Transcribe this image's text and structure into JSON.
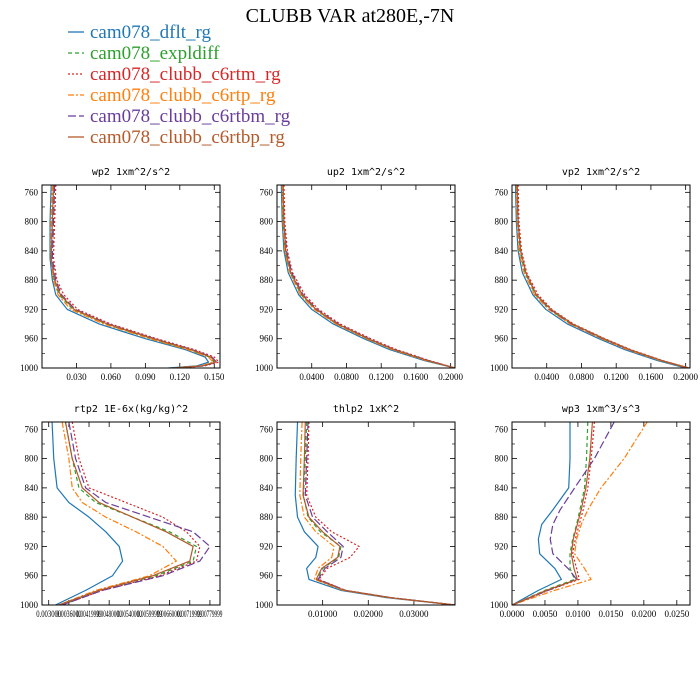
{
  "figure": {
    "title": "CLUBB VAR at280E,-7N"
  },
  "legend": [
    {
      "name": "cam078_dflt_rg",
      "color": "#1f77b4",
      "dash": ""
    },
    {
      "name": "cam078_expldiff",
      "color": "#2ca02c",
      "dash": "4 3"
    },
    {
      "name": "cam078_clubb_c6rtm_rg",
      "color": "#d62728",
      "dash": "2 2"
    },
    {
      "name": "cam078_clubb_c6rtp_rg",
      "color": "#ff7f0e",
      "dash": "6 2 2 2"
    },
    {
      "name": "cam078_clubb_c6rtbm_rg",
      "color": "#6a3d9a",
      "dash": "8 3"
    },
    {
      "name": "cam078_clubb_c6rtbp_rg",
      "color": "#b35a2a",
      "dash": ""
    }
  ],
  "chart_data": [
    {
      "type": "line",
      "title": "wp2   1xm^2/s^2",
      "xlim": [
        0.0,
        0.155
      ],
      "ylim": [
        1000,
        750
      ],
      "invert_y": true,
      "xticks": [
        0.03,
        0.06,
        0.09,
        0.12,
        0.15
      ],
      "xtick_labels": [
        "0.030",
        "0.060",
        "0.090",
        "0.120",
        "0.150"
      ],
      "yticks": [
        760,
        800,
        840,
        880,
        920,
        960,
        1000
      ],
      "y": [
        750,
        800,
        850,
        880,
        900,
        920,
        940,
        960,
        975,
        985,
        992,
        997,
        1000
      ],
      "series": [
        {
          "name": "cam078_dflt_rg",
          "values": [
            0.008,
            0.007,
            0.007,
            0.009,
            0.012,
            0.022,
            0.05,
            0.09,
            0.125,
            0.142,
            0.145,
            0.135,
            0.11
          ]
        },
        {
          "name": "cam078_expldiff",
          "values": [
            0.01,
            0.009,
            0.008,
            0.01,
            0.015,
            0.027,
            0.056,
            0.095,
            0.128,
            0.146,
            0.15,
            0.14,
            0.115
          ]
        },
        {
          "name": "cam078_clubb_c6rtm_rg",
          "values": [
            0.012,
            0.011,
            0.01,
            0.013,
            0.019,
            0.031,
            0.06,
            0.1,
            0.133,
            0.15,
            0.154,
            0.142,
            0.118
          ]
        },
        {
          "name": "cam078_clubb_c6rtp_rg",
          "values": [
            0.009,
            0.008,
            0.008,
            0.01,
            0.014,
            0.025,
            0.054,
            0.094,
            0.127,
            0.145,
            0.149,
            0.139,
            0.113
          ]
        },
        {
          "name": "cam078_clubb_c6rtbm_rg",
          "values": [
            0.011,
            0.01,
            0.009,
            0.012,
            0.017,
            0.029,
            0.058,
            0.098,
            0.131,
            0.148,
            0.152,
            0.141,
            0.116
          ]
        },
        {
          "name": "cam078_clubb_c6rtbp_rg",
          "values": [
            0.01,
            0.009,
            0.008,
            0.011,
            0.016,
            0.028,
            0.057,
            0.097,
            0.13,
            0.147,
            0.151,
            0.14,
            0.116
          ]
        }
      ]
    },
    {
      "type": "line",
      "title": "up2   1xm^2/s^2",
      "xlim": [
        0.0,
        0.205
      ],
      "ylim": [
        1000,
        750
      ],
      "invert_y": true,
      "xticks": [
        0.04,
        0.08,
        0.12,
        0.16,
        0.2
      ],
      "xtick_labels": [
        "0.0400",
        "0.0800",
        "0.1200",
        "0.1600",
        "0.2000"
      ],
      "yticks": [
        760,
        800,
        840,
        880,
        920,
        960,
        1000
      ],
      "y": [
        750,
        800,
        840,
        870,
        900,
        920,
        940,
        960,
        975,
        990,
        1000
      ],
      "series": [
        {
          "name": "cam078_dflt_rg",
          "values": [
            0.005,
            0.006,
            0.008,
            0.013,
            0.025,
            0.04,
            0.065,
            0.1,
            0.13,
            0.17,
            0.205
          ]
        },
        {
          "name": "cam078_expldiff",
          "values": [
            0.006,
            0.007,
            0.009,
            0.015,
            0.028,
            0.044,
            0.069,
            0.104,
            0.134,
            0.173,
            0.205
          ]
        },
        {
          "name": "cam078_clubb_c6rtm_rg",
          "values": [
            0.008,
            0.009,
            0.012,
            0.018,
            0.032,
            0.048,
            0.073,
            0.108,
            0.138,
            0.176,
            0.205
          ]
        },
        {
          "name": "cam078_clubb_c6rtp_rg",
          "values": [
            0.006,
            0.007,
            0.009,
            0.015,
            0.027,
            0.043,
            0.068,
            0.103,
            0.133,
            0.172,
            0.205
          ]
        },
        {
          "name": "cam078_clubb_c6rtbm_rg",
          "values": [
            0.007,
            0.008,
            0.011,
            0.017,
            0.03,
            0.046,
            0.071,
            0.106,
            0.136,
            0.175,
            0.205
          ]
        },
        {
          "name": "cam078_clubb_c6rtbp_rg",
          "values": [
            0.007,
            0.008,
            0.01,
            0.016,
            0.029,
            0.045,
            0.07,
            0.105,
            0.135,
            0.174,
            0.205
          ]
        }
      ]
    },
    {
      "type": "line",
      "title": "vp2   1xm^2/s^2",
      "xlim": [
        0.0,
        0.205
      ],
      "ylim": [
        1000,
        750
      ],
      "invert_y": true,
      "xticks": [
        0.04,
        0.08,
        0.12,
        0.16,
        0.2
      ],
      "xtick_labels": [
        "0.0400",
        "0.0800",
        "0.1200",
        "0.1600",
        "0.2000"
      ],
      "yticks": [
        760,
        800,
        840,
        880,
        920,
        960,
        1000
      ],
      "y": [
        750,
        800,
        840,
        870,
        900,
        920,
        940,
        960,
        975,
        990,
        1000
      ],
      "series": [
        {
          "name": "cam078_dflt_rg",
          "values": [
            0.004,
            0.005,
            0.007,
            0.012,
            0.024,
            0.039,
            0.064,
            0.1,
            0.13,
            0.168,
            0.2
          ]
        },
        {
          "name": "cam078_expldiff",
          "values": [
            0.006,
            0.007,
            0.009,
            0.015,
            0.027,
            0.043,
            0.068,
            0.104,
            0.134,
            0.172,
            0.203
          ]
        },
        {
          "name": "cam078_clubb_c6rtm_rg",
          "values": [
            0.007,
            0.008,
            0.011,
            0.017,
            0.03,
            0.046,
            0.071,
            0.107,
            0.137,
            0.174,
            0.204
          ]
        },
        {
          "name": "cam078_clubb_c6rtp_rg",
          "values": [
            0.005,
            0.006,
            0.008,
            0.014,
            0.026,
            0.042,
            0.067,
            0.103,
            0.133,
            0.171,
            0.202
          ]
        },
        {
          "name": "cam078_clubb_c6rtbm_rg",
          "values": [
            0.006,
            0.007,
            0.01,
            0.016,
            0.028,
            0.044,
            0.069,
            0.105,
            0.135,
            0.173,
            0.203
          ]
        },
        {
          "name": "cam078_clubb_c6rtbp_rg",
          "values": [
            0.006,
            0.007,
            0.01,
            0.016,
            0.028,
            0.045,
            0.07,
            0.106,
            0.136,
            0.173,
            0.204
          ]
        }
      ]
    },
    {
      "type": "line",
      "title": "rtp2   1E-6x(kg/kg)^2",
      "xlim": [
        0.0028,
        0.0081
      ],
      "ylim": [
        1000,
        750
      ],
      "invert_y": true,
      "xticks": [
        0.003,
        0.0036,
        0.0042,
        0.0048,
        0.0054,
        0.006,
        0.0066,
        0.0072,
        0.0078
      ],
      "xtick_labels": [
        "0.003000",
        "0.003600",
        "0.004200",
        "0.004800",
        "0.005400",
        "0.006000",
        "0.006600",
        "0.007200",
        "0.007800"
      ],
      "xtick_labels_visible": [
        "0.003000",
        "0.0036000",
        "0.00419999",
        "0.00480000",
        "0.00540000",
        "0.00599999",
        "0.00660000",
        "0.00719999",
        "0.00779999"
      ],
      "yticks": [
        760,
        800,
        840,
        880,
        920,
        960,
        1000
      ],
      "y": [
        750,
        800,
        840,
        860,
        880,
        900,
        920,
        940,
        960,
        980,
        1000
      ],
      "series": [
        {
          "name": "cam078_dflt_rg",
          "values": [
            0.0031,
            0.00315,
            0.00325,
            0.0036,
            0.0042,
            0.0047,
            0.0051,
            0.0052,
            0.0049,
            0.0041,
            0.0032
          ]
        },
        {
          "name": "cam078_expldiff",
          "values": [
            0.0035,
            0.0037,
            0.0039,
            0.0044,
            0.0055,
            0.0066,
            0.0074,
            0.0073,
            0.0062,
            0.0045,
            0.0034
          ]
        },
        {
          "name": "cam078_clubb_c6rtm_rg",
          "values": [
            0.0037,
            0.0039,
            0.0042,
            0.0053,
            0.0064,
            0.0071,
            0.0075,
            0.0074,
            0.0063,
            0.0046,
            0.0034
          ]
        },
        {
          "name": "cam078_clubb_c6rtp_rg",
          "values": [
            0.0034,
            0.0036,
            0.0037,
            0.004,
            0.0047,
            0.0056,
            0.0064,
            0.0068,
            0.006,
            0.0044,
            0.0033
          ]
        },
        {
          "name": "cam078_clubb_c6rtbm_rg",
          "values": [
            0.0036,
            0.0038,
            0.0041,
            0.0047,
            0.006,
            0.0073,
            0.0078,
            0.0075,
            0.0064,
            0.0046,
            0.0034
          ]
        },
        {
          "name": "cam078_clubb_c6rtbp_rg",
          "values": [
            0.0035,
            0.0037,
            0.004,
            0.0045,
            0.0055,
            0.0065,
            0.0073,
            0.0072,
            0.0061,
            0.0045,
            0.0033
          ]
        }
      ]
    },
    {
      "type": "line",
      "title": "thlp2   1xK^2",
      "xlim": [
        0.0,
        0.039
      ],
      "ylim": [
        1000,
        750
      ],
      "invert_y": true,
      "xticks": [
        0.01,
        0.02,
        0.03
      ],
      "xtick_labels": [
        "0.01000",
        "0.02000",
        "0.03000"
      ],
      "yticks": [
        760,
        800,
        840,
        880,
        920,
        960,
        1000
      ],
      "y": [
        750,
        800,
        850,
        880,
        900,
        920,
        935,
        950,
        965,
        980,
        990,
        1000
      ],
      "series": [
        {
          "name": "cam078_dflt_rg",
          "values": [
            0.0045,
            0.0042,
            0.004,
            0.0045,
            0.006,
            0.009,
            0.0085,
            0.0065,
            0.007,
            0.014,
            0.024,
            0.039
          ]
        },
        {
          "name": "cam078_expldiff",
          "values": [
            0.0065,
            0.0062,
            0.0058,
            0.0068,
            0.0095,
            0.014,
            0.0135,
            0.01,
            0.0088,
            0.015,
            0.025,
            0.039
          ]
        },
        {
          "name": "cam078_clubb_c6rtm_rg",
          "values": [
            0.007,
            0.0068,
            0.0065,
            0.0085,
            0.012,
            0.018,
            0.016,
            0.011,
            0.0092,
            0.015,
            0.025,
            0.039
          ]
        },
        {
          "name": "cam078_clubb_c6rtp_rg",
          "values": [
            0.0055,
            0.0052,
            0.005,
            0.006,
            0.0085,
            0.0125,
            0.012,
            0.009,
            0.0082,
            0.0145,
            0.0245,
            0.039
          ]
        },
        {
          "name": "cam078_clubb_c6rtbm_rg",
          "values": [
            0.0068,
            0.0065,
            0.0062,
            0.0078,
            0.011,
            0.0145,
            0.014,
            0.0105,
            0.009,
            0.015,
            0.025,
            0.039
          ]
        },
        {
          "name": "cam078_clubb_c6rtbp_rg",
          "values": [
            0.0062,
            0.006,
            0.0057,
            0.007,
            0.01,
            0.0138,
            0.0133,
            0.0098,
            0.0086,
            0.0148,
            0.0248,
            0.039
          ]
        }
      ]
    },
    {
      "type": "line",
      "title": "wp3   1xm^3/s^3",
      "xlim": [
        0.0,
        0.027
      ],
      "ylim": [
        1000,
        750
      ],
      "invert_y": true,
      "xticks": [
        0.0,
        0.005,
        0.01,
        0.015,
        0.02,
        0.025
      ],
      "xtick_labels": [
        "0.0000",
        "0.0050",
        "0.0100",
        "0.0150",
        "0.0200",
        "0.0250"
      ],
      "yticks": [
        760,
        800,
        840,
        880,
        920,
        960,
        1000
      ],
      "y": [
        750,
        800,
        840,
        870,
        890,
        910,
        930,
        950,
        965,
        980,
        1000
      ],
      "series": [
        {
          "name": "cam078_dflt_rg",
          "values": [
            0.0088,
            0.0088,
            0.0086,
            0.0062,
            0.0045,
            0.004,
            0.0042,
            0.0065,
            0.0075,
            0.004,
            0.0
          ]
        },
        {
          "name": "cam078_expldiff",
          "values": [
            0.0115,
            0.0113,
            0.011,
            0.0103,
            0.0098,
            0.0092,
            0.0088,
            0.0088,
            0.0095,
            0.005,
            0.0
          ]
        },
        {
          "name": "cam078_clubb_c6rtm_rg",
          "values": [
            0.0125,
            0.012,
            0.0115,
            0.0108,
            0.0102,
            0.0096,
            0.0092,
            0.0098,
            0.0102,
            0.0055,
            0.0
          ]
        },
        {
          "name": "cam078_clubb_c6rtp_rg",
          "values": [
            0.0205,
            0.017,
            0.0135,
            0.0115,
            0.0105,
            0.0098,
            0.0095,
            0.011,
            0.012,
            0.0065,
            0.0
          ]
        },
        {
          "name": "cam078_clubb_c6rtbm_rg",
          "values": [
            0.0155,
            0.0125,
            0.0095,
            0.0073,
            0.0062,
            0.0058,
            0.0062,
            0.0085,
            0.0098,
            0.0055,
            0.0
          ]
        },
        {
          "name": "cam078_clubb_c6rtbp_rg",
          "values": [
            0.0122,
            0.0118,
            0.0112,
            0.0105,
            0.0099,
            0.0093,
            0.009,
            0.0094,
            0.0099,
            0.0052,
            0.0
          ]
        }
      ]
    }
  ]
}
